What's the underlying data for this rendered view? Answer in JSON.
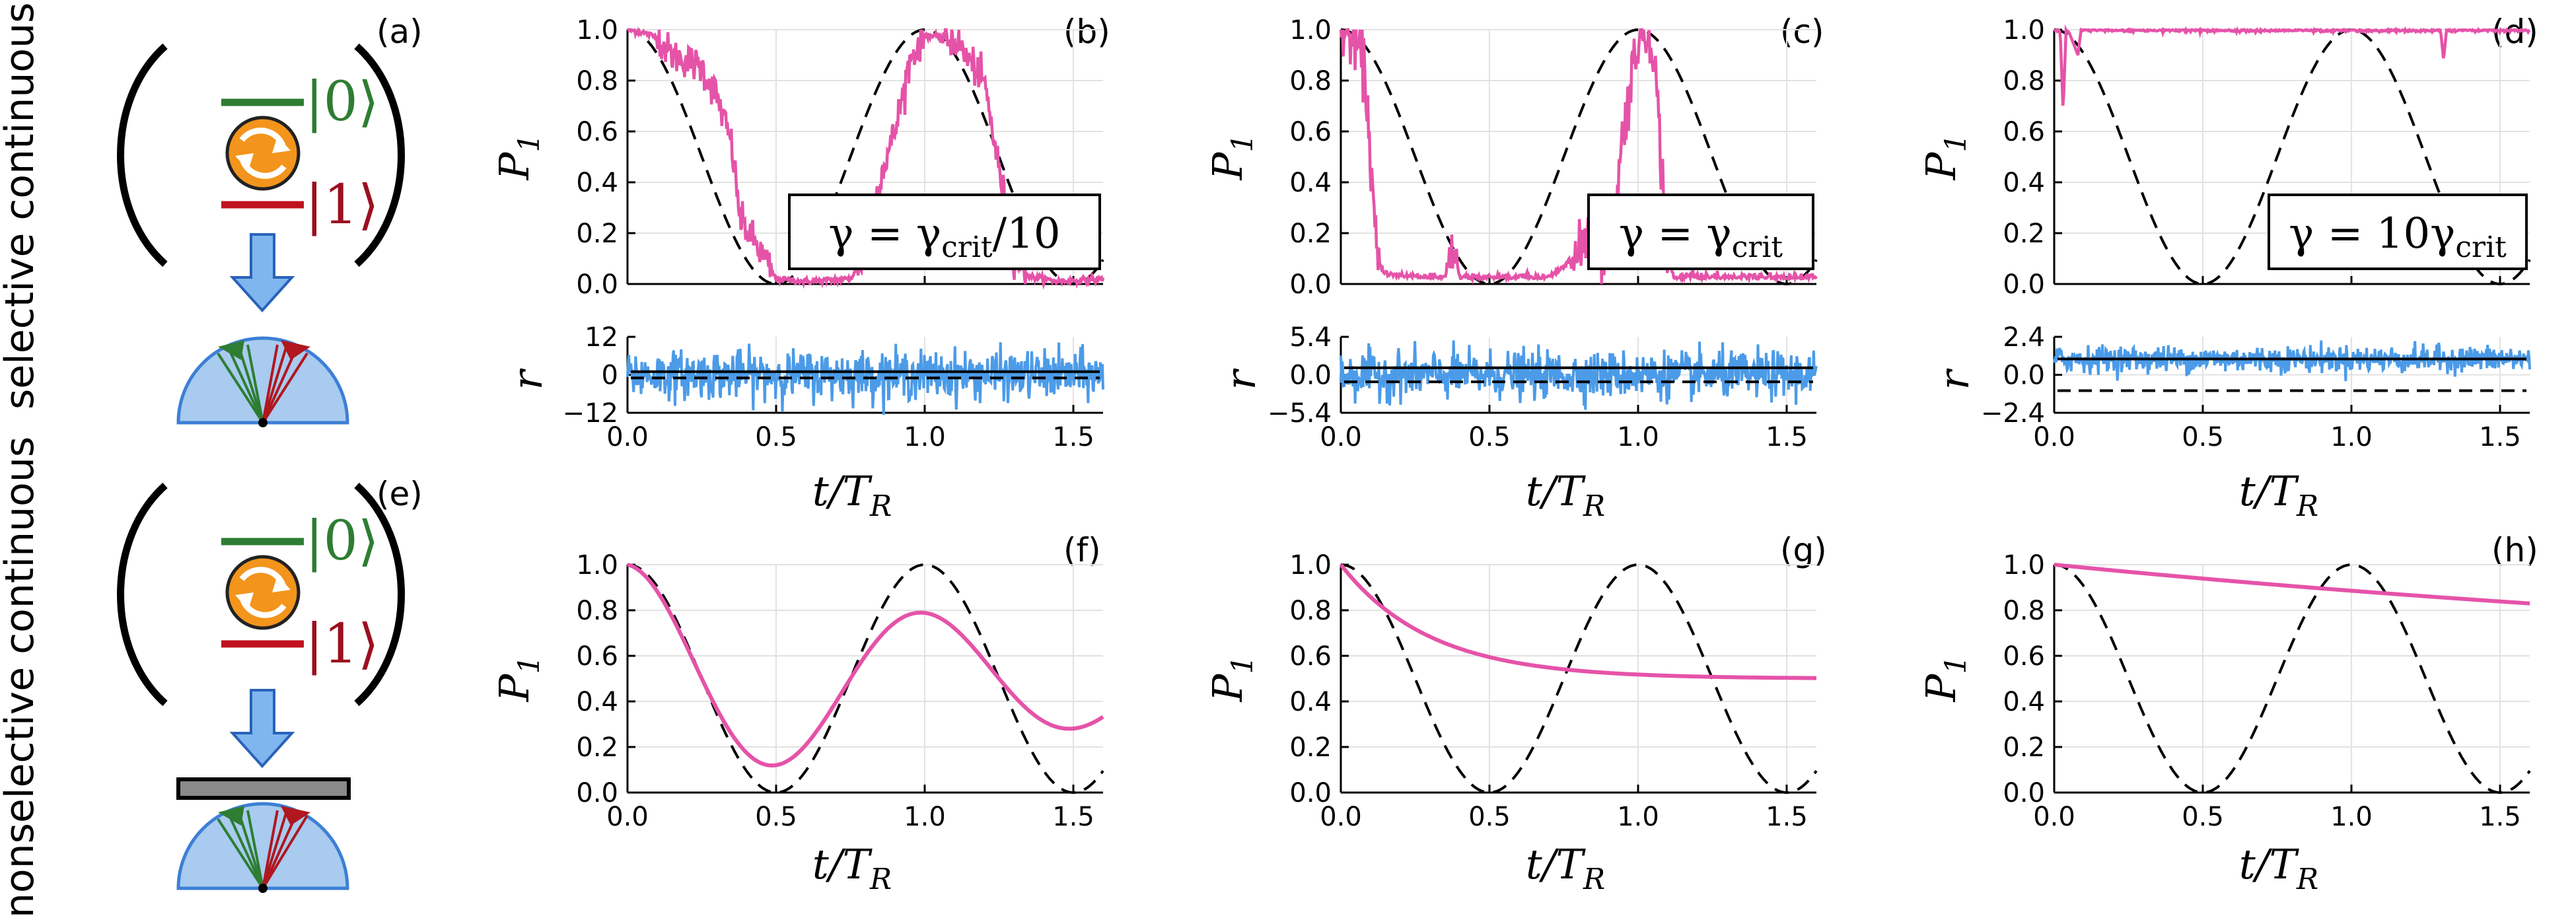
{
  "row_labels": {
    "top": "selective continuous",
    "bottom": "nonselective continuous"
  },
  "schematic": {
    "ket0": "|0⟩",
    "ket1": "|1⟩"
  },
  "panel_letters": [
    "(a)",
    "(b)",
    "(c)",
    "(d)",
    "(e)",
    "(f)",
    "(g)",
    "(h)"
  ],
  "colors": {
    "trajectory": "#e553a8",
    "signal": "#4b9be8",
    "reference": "#000000",
    "green": "#2e7d32",
    "red": "#c0111f",
    "orange": "#f08a14"
  },
  "chart_data": [
    {
      "id": "b",
      "type": "line",
      "title": "",
      "ylabel": "P_1",
      "xlim": [
        0,
        1.6
      ],
      "ylim": [
        0,
        1
      ],
      "yticks": [
        "0.0",
        "0.2",
        "0.4",
        "0.6",
        "0.8",
        "1.0"
      ],
      "legend": "γ = γcrit/10",
      "series": [
        {
          "name": "reference cos²(πt/T_R)",
          "style": "dashed"
        },
        {
          "name": "stochastic trajectory",
          "mode": "rabi_noisy",
          "anchors": [
            [
              0,
              1
            ],
            [
              0.05,
              0.99
            ],
            [
              0.1,
              0.97
            ],
            [
              0.15,
              0.9
            ],
            [
              0.2,
              0.88
            ],
            [
              0.25,
              0.85
            ],
            [
              0.3,
              0.74
            ],
            [
              0.35,
              0.55
            ],
            [
              0.38,
              0.25
            ],
            [
              0.42,
              0.18
            ],
            [
              0.45,
              0.12
            ],
            [
              0.5,
              0.02
            ],
            [
              0.6,
              0.01
            ],
            [
              0.75,
              0.02
            ],
            [
              0.8,
              0.12
            ],
            [
              0.85,
              0.42
            ],
            [
              0.9,
              0.6
            ],
            [
              0.95,
              0.88
            ],
            [
              1.0,
              0.98
            ],
            [
              1.1,
              0.96
            ],
            [
              1.2,
              0.8
            ],
            [
              1.25,
              0.45
            ],
            [
              1.3,
              0.12
            ],
            [
              1.35,
              0.03
            ],
            [
              1.45,
              0.01
            ],
            [
              1.6,
              0.02
            ]
          ]
        }
      ]
    },
    {
      "id": "c",
      "type": "line",
      "ylabel": "P_1",
      "xlim": [
        0,
        1.6
      ],
      "ylim": [
        0,
        1
      ],
      "yticks": [
        "0.0",
        "0.2",
        "0.4",
        "0.6",
        "0.8",
        "1.0"
      ],
      "legend": "γ = γcrit",
      "series": [
        {
          "name": "reference",
          "style": "dashed"
        },
        {
          "name": "stochastic trajectory",
          "mode": "jumpy",
          "anchors": [
            [
              0,
              1
            ],
            [
              0.05,
              0.95
            ],
            [
              0.08,
              0.85
            ],
            [
              0.1,
              0.5
            ],
            [
              0.12,
              0.1
            ],
            [
              0.15,
              0.03
            ],
            [
              0.35,
              0.02
            ],
            [
              0.38,
              0.15
            ],
            [
              0.4,
              0.02
            ],
            [
              0.7,
              0.02
            ],
            [
              0.8,
              0.1
            ],
            [
              0.85,
              0.3
            ],
            [
              0.9,
              0.05
            ],
            [
              0.95,
              0.6
            ],
            [
              1.0,
              0.98
            ],
            [
              1.05,
              0.97
            ],
            [
              1.1,
              0.1
            ],
            [
              1.12,
              0.02
            ],
            [
              1.6,
              0.02
            ]
          ]
        }
      ]
    },
    {
      "id": "d",
      "type": "line",
      "ylabel": "P_1",
      "xlim": [
        0,
        1.6
      ],
      "ylim": [
        0,
        1
      ],
      "yticks": [
        "0.0",
        "0.2",
        "0.4",
        "0.6",
        "0.8",
        "1.0"
      ],
      "legend": "γ = 10γcrit",
      "series": [
        {
          "name": "reference",
          "style": "dashed"
        },
        {
          "name": "stochastic trajectory",
          "mode": "zeno",
          "anchors": [
            [
              0,
              1
            ],
            [
              0.02,
              1
            ],
            [
              0.03,
              0.68
            ],
            [
              0.04,
              1
            ],
            [
              0.05,
              0.99
            ],
            [
              0.08,
              0.9
            ],
            [
              0.09,
              1
            ],
            [
              1.3,
              1
            ],
            [
              1.31,
              0.88
            ],
            [
              1.32,
              1
            ],
            [
              1.6,
              1
            ]
          ]
        }
      ]
    },
    {
      "id": "b_r",
      "type": "line",
      "ylabel": "r",
      "xlim": [
        0,
        1.6
      ],
      "ylim": [
        -12,
        12
      ],
      "yticks": [
        "12",
        "0",
        "−12"
      ],
      "series": [
        {
          "name": "measurement record",
          "noise_sigma": 5
        },
        {
          "name": "mean signal",
          "values_at": [
            1,
            -1
          ],
          "style": "solid/dashed"
        }
      ]
    },
    {
      "id": "c_r",
      "type": "line",
      "ylabel": "r",
      "xlim": [
        0,
        1.6
      ],
      "ylim": [
        -5.4,
        5.4
      ],
      "yticks": [
        "5.4",
        "0.0",
        "−5.4"
      ],
      "series": [
        {
          "name": "measurement record",
          "noise_sigma": 2.2
        },
        {
          "name": "mean signal",
          "values_at": [
            1,
            -1
          ]
        }
      ]
    },
    {
      "id": "d_r",
      "type": "line",
      "ylabel": "r",
      "xlim": [
        0,
        1.6
      ],
      "ylim": [
        -2.4,
        2.4
      ],
      "yticks": [
        "2.4",
        "0.0",
        "−2.4"
      ],
      "series": [
        {
          "name": "measurement record",
          "offset": 1,
          "noise_sigma": 0.55
        },
        {
          "name": "mean signal",
          "values_at": [
            1,
            -1
          ]
        }
      ]
    },
    {
      "id": "f",
      "type": "line",
      "xlabel": "t/T_R",
      "ylabel": "P_1",
      "xlim": [
        0,
        1.6
      ],
      "ylim": [
        0,
        1
      ],
      "xticks": [
        "0.0",
        "0.5",
        "1.0",
        "1.5"
      ],
      "yticks": [
        "0.0",
        "0.2",
        "0.4",
        "0.6",
        "0.8",
        "1.0"
      ],
      "series": [
        {
          "name": "reference",
          "style": "dashed"
        },
        {
          "name": "ensemble average",
          "formula": "0.5+0.5*exp(-g t)cos(2πt)",
          "g": 0.55
        }
      ]
    },
    {
      "id": "g",
      "type": "line",
      "xlabel": "t/T_R",
      "ylabel": "P_1",
      "xlim": [
        0,
        1.6
      ],
      "ylim": [
        0,
        1
      ],
      "xticks": [
        "0.0",
        "0.5",
        "1.0",
        "1.5"
      ],
      "yticks": [
        "0.0",
        "0.2",
        "0.4",
        "0.6",
        "0.8",
        "1.0"
      ],
      "series": [
        {
          "name": "reference",
          "style": "dashed"
        },
        {
          "name": "ensemble average",
          "formula": "0.5+0.5*exp(-t/τ)",
          "tau": 0.3
        }
      ]
    },
    {
      "id": "h",
      "type": "line",
      "xlabel": "t/T_R",
      "ylabel": "P_1",
      "xlim": [
        0,
        1.6
      ],
      "ylim": [
        0,
        1
      ],
      "xticks": [
        "0.0",
        "0.5",
        "1.0",
        "1.5"
      ],
      "yticks": [
        "0.0",
        "0.2",
        "0.4",
        "0.6",
        "0.8",
        "1.0"
      ],
      "series": [
        {
          "name": "reference",
          "style": "dashed"
        },
        {
          "name": "ensemble average",
          "formula": "0.5+0.5*exp(-t/τ)",
          "tau": 3.85
        }
      ]
    }
  ],
  "axis_labels": {
    "x": "t/T",
    "x_sub": "R",
    "p": "P",
    "p_sub": "1",
    "r": "r"
  },
  "legends": {
    "b": {
      "pre": "γ = γ",
      "sub": "crit",
      "post": "/10"
    },
    "c": {
      "pre": "γ = γ",
      "sub": "crit",
      "post": ""
    },
    "d": {
      "pre": "γ = 10γ",
      "sub": "crit",
      "post": ""
    }
  }
}
